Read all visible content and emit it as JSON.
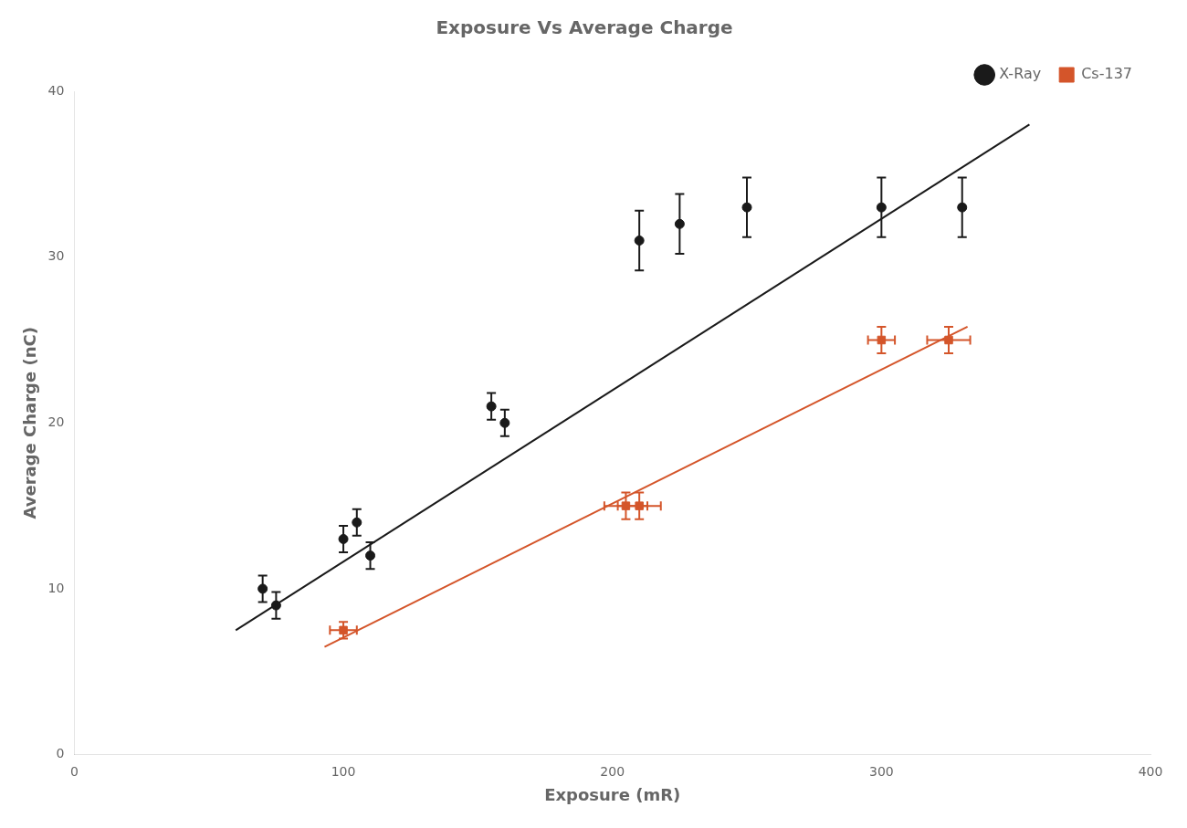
{
  "chart_data": {
    "type": "scatter",
    "title": "Exposure Vs Average Charge",
    "x_label": "Exposure (mR)",
    "y_label": "Average Charge (nC)",
    "xlim": [
      0,
      400
    ],
    "ylim": [
      0,
      40
    ],
    "xticks": [
      0,
      100,
      200,
      300,
      400
    ],
    "yticks": [
      0,
      10,
      20,
      30,
      40
    ],
    "grid": false,
    "legend": "upper right",
    "series": [
      {
        "name": "X-Ray",
        "color": "#1a1a1a",
        "marker": "circle",
        "x": [
          70,
          75,
          100,
          105,
          110,
          155,
          160,
          210,
          225,
          250,
          300,
          330
        ],
        "values": [
          10,
          9,
          13,
          14,
          12,
          21,
          20,
          31,
          32,
          33,
          33,
          33
        ],
        "yerr": [
          0.8,
          0.8,
          0.8,
          0.8,
          0.8,
          0.8,
          0.8,
          1.8,
          1.8,
          1.8,
          1.8,
          1.8
        ],
        "fit": {
          "x": [
            60,
            355
          ],
          "values": [
            7.5,
            38.0
          ]
        }
      },
      {
        "name": "Cs-137",
        "color": "#d4552a",
        "marker": "square",
        "x": [
          100,
          205,
          210,
          300,
          325
        ],
        "values": [
          7.5,
          15,
          15,
          25,
          25
        ],
        "xerr": [
          5,
          8,
          8,
          5,
          8
        ],
        "yerr": [
          0.5,
          0.8,
          0.8,
          0.8,
          0.8
        ],
        "fit": {
          "x": [
            93,
            332
          ],
          "values": [
            6.5,
            25.8
          ]
        }
      }
    ]
  }
}
